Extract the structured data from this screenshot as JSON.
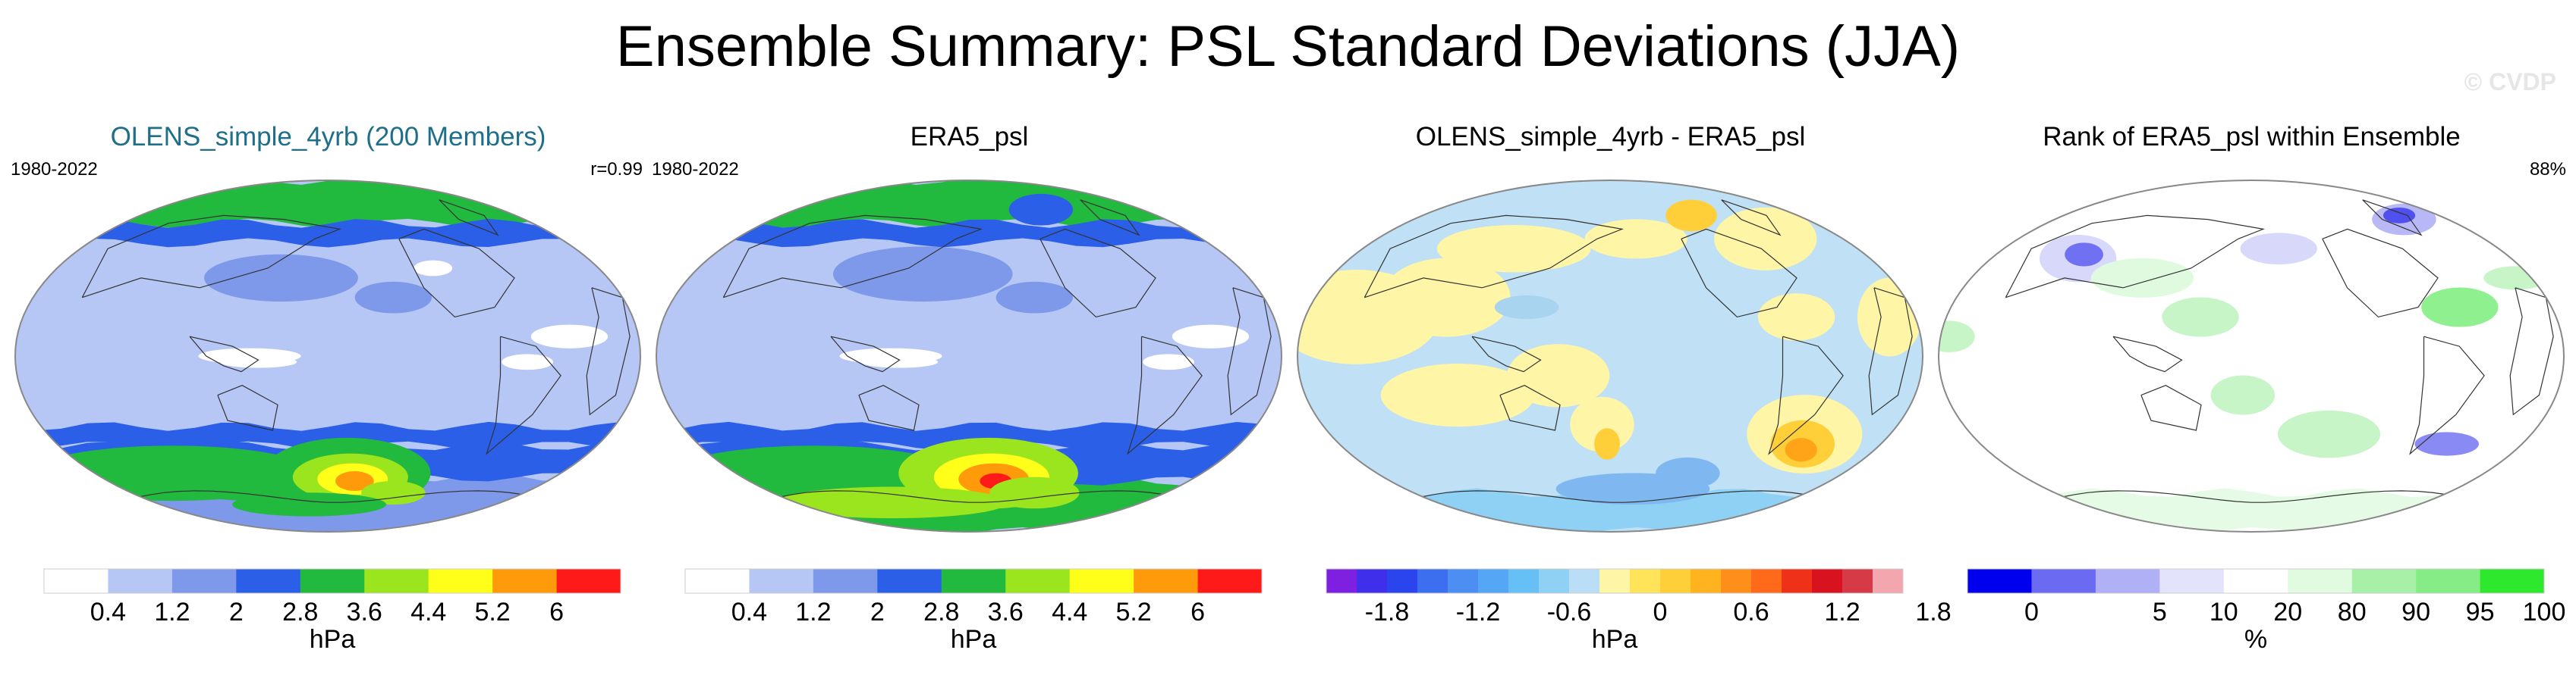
{
  "title": "Ensemble Summary: PSL Standard Deviations (JJA)",
  "watermark": "© CVDP",
  "panels": [
    {
      "title": "OLENS_simple_4yrb (200 Members)",
      "title_color": "#1f6f8b",
      "left_label": "1980-2022",
      "right_label": "r=0.99",
      "map": {
        "ocean": "#b6c7f5",
        "polar_bands": [
          {
            "from_lat": -90,
            "to_lat": -62,
            "color": "#7e98ea"
          },
          {
            "from_lat": -62,
            "to_lat": -46,
            "color": "#2b5fe8"
          },
          {
            "from_lat": -46,
            "to_lat": -36,
            "color": "#2b5fe8"
          },
          {
            "from_lat": 68,
            "to_lat": 90,
            "color": "#22b93f"
          },
          {
            "from_lat": 58,
            "to_lat": 68,
            "color": "#2b5fe8"
          }
        ],
        "blobs": [
          {
            "lon": 60,
            "lat": -60,
            "rx": 0.22,
            "ry": 0.07,
            "color": "#22b93f"
          },
          {
            "lon": 115,
            "lat": -64,
            "rx": 0.11,
            "ry": 0.05,
            "color": "#22b93f"
          },
          {
            "lon": 40,
            "lat": -58,
            "rx": 0.07,
            "ry": 0.035,
            "color": "#22b93f"
          },
          {
            "lon": 195,
            "lat": -60,
            "rx": 0.13,
            "ry": 0.09,
            "color": "#22b93f"
          },
          {
            "lon": 198,
            "lat": -62,
            "rx": 0.09,
            "ry": 0.06,
            "color": "#9be51e"
          },
          {
            "lon": 200,
            "lat": -63,
            "rx": 0.055,
            "ry": 0.04,
            "color": "#ffff1a"
          },
          {
            "lon": 202,
            "lat": -64,
            "rx": 0.03,
            "ry": 0.025,
            "color": "#ff9b0a"
          },
          {
            "lon": 240,
            "lat": -70,
            "rx": 0.05,
            "ry": 0.03,
            "color": "#9be51e"
          },
          {
            "lon": 160,
            "lat": -76,
            "rx": 0.12,
            "ry": 0.03,
            "color": "#22b93f"
          },
          {
            "lon": 150,
            "lat": 40,
            "rx": 0.12,
            "ry": 0.06,
            "color": "#7e98ea"
          },
          {
            "lon": 135,
            "lat": 0,
            "rx": 0.08,
            "ry": 0.02,
            "color": "#ffffff"
          },
          {
            "lon": 140,
            "lat": -3,
            "rx": 0.06,
            "ry": 0.015,
            "color": "#ffffff"
          },
          {
            "lon": 295,
            "lat": -3,
            "rx": 0.04,
            "ry": 0.02,
            "color": "#ffffff"
          },
          {
            "lon": 250,
            "lat": 45,
            "rx": 0.03,
            "ry": 0.02,
            "color": "#ffffff"
          },
          {
            "lon": 320,
            "lat": 10,
            "rx": 0.06,
            "ry": 0.03,
            "color": "#ffffff"
          },
          {
            "lon": 220,
            "lat": 30,
            "rx": 0.06,
            "ry": 0.04,
            "color": "#7e98ea"
          }
        ]
      },
      "colorbar": {
        "type": "hPa",
        "unit": "hPa",
        "colors": [
          "#ffffff",
          "#b6c7f5",
          "#7e98ea",
          "#2b5fe8",
          "#22b93f",
          "#9be51e",
          "#ffff1a",
          "#ff9b0a",
          "#ff1a1a"
        ],
        "tick_labels": [
          "0.4",
          "1.2",
          "2",
          "2.8",
          "3.6",
          "4.4",
          "5.2",
          "6"
        ]
      }
    },
    {
      "title": "ERA5_psl",
      "title_color": "#000000",
      "left_label": "1980-2022",
      "right_label": "",
      "map": {
        "ocean": "#b6c7f5",
        "polar_bands": [
          {
            "from_lat": -90,
            "to_lat": -64,
            "color": "#22b93f"
          },
          {
            "from_lat": -64,
            "to_lat": -46,
            "color": "#2b5fe8"
          },
          {
            "from_lat": -46,
            "to_lat": -36,
            "color": "#2b5fe8"
          },
          {
            "from_lat": 68,
            "to_lat": 90,
            "color": "#22b93f"
          },
          {
            "from_lat": 58,
            "to_lat": 68,
            "color": "#2b5fe8"
          }
        ],
        "blobs": [
          {
            "lon": 60,
            "lat": -60,
            "rx": 0.22,
            "ry": 0.07,
            "color": "#22b93f"
          },
          {
            "lon": 195,
            "lat": -60,
            "rx": 0.14,
            "ry": 0.09,
            "color": "#9be51e"
          },
          {
            "lon": 198,
            "lat": -62,
            "rx": 0.09,
            "ry": 0.06,
            "color": "#ffff1a"
          },
          {
            "lon": 200,
            "lat": -63,
            "rx": 0.055,
            "ry": 0.04,
            "color": "#ff9b0a"
          },
          {
            "lon": 202,
            "lat": -64,
            "rx": 0.025,
            "ry": 0.02,
            "color": "#ff1a1a"
          },
          {
            "lon": 240,
            "lat": -70,
            "rx": 0.07,
            "ry": 0.04,
            "color": "#9be51e"
          },
          {
            "lon": 100,
            "lat": -75,
            "rx": 0.18,
            "ry": 0.04,
            "color": "#9be51e"
          },
          {
            "lon": 150,
            "lat": 42,
            "rx": 0.14,
            "ry": 0.07,
            "color": "#7e98ea"
          },
          {
            "lon": 135,
            "lat": 0,
            "rx": 0.08,
            "ry": 0.02,
            "color": "#ffffff"
          },
          {
            "lon": 140,
            "lat": -3,
            "rx": 0.06,
            "ry": 0.015,
            "color": "#ffffff"
          },
          {
            "lon": 295,
            "lat": -3,
            "rx": 0.04,
            "ry": 0.02,
            "color": "#ffffff"
          },
          {
            "lon": 320,
            "lat": 10,
            "rx": 0.06,
            "ry": 0.03,
            "color": "#ffffff"
          },
          {
            "lon": 220,
            "lat": 30,
            "rx": 0.06,
            "ry": 0.04,
            "color": "#7e98ea"
          },
          {
            "lon": 255,
            "lat": 75,
            "rx": 0.05,
            "ry": 0.04,
            "color": "#2b5fe8"
          }
        ]
      },
      "colorbar": {
        "type": "hPa",
        "unit": "hPa",
        "colors": [
          "#ffffff",
          "#b6c7f5",
          "#7e98ea",
          "#2b5fe8",
          "#22b93f",
          "#9be51e",
          "#ffff1a",
          "#ff9b0a",
          "#ff1a1a"
        ],
        "tick_labels": [
          "0.4",
          "1.2",
          "2",
          "2.8",
          "3.6",
          "4.4",
          "5.2",
          "6"
        ]
      }
    },
    {
      "title": "OLENS_simple_4yrb - ERA5_psl",
      "title_color": "#000000",
      "left_label": "",
      "right_label": "",
      "map": {
        "ocean": "#bfe0f5",
        "polar_bands": [
          {
            "from_lat": -90,
            "to_lat": -70,
            "color": "#8fd0f5"
          }
        ],
        "blobs": [
          {
            "lon": 30,
            "lat": 20,
            "rx": 0.13,
            "ry": 0.12,
            "color": "#fff5a6"
          },
          {
            "lon": 80,
            "lat": 30,
            "rx": 0.1,
            "ry": 0.1,
            "color": "#fff5a6"
          },
          {
            "lon": 110,
            "lat": 55,
            "rx": 0.12,
            "ry": 0.06,
            "color": "#fff5a6"
          },
          {
            "lon": 90,
            "lat": -20,
            "rx": 0.12,
            "ry": 0.08,
            "color": "#fff5a6"
          },
          {
            "lon": 150,
            "lat": -10,
            "rx": 0.08,
            "ry": 0.08,
            "color": "#fff5a6"
          },
          {
            "lon": 175,
            "lat": -35,
            "rx": 0.05,
            "ry": 0.07,
            "color": "#fff5a6"
          },
          {
            "lon": 178,
            "lat": -45,
            "rx": 0.02,
            "ry": 0.04,
            "color": "#ffcf3a"
          },
          {
            "lon": 200,
            "lat": 60,
            "rx": 0.08,
            "ry": 0.05,
            "color": "#fff5a6"
          },
          {
            "lon": 258,
            "lat": 72,
            "rx": 0.04,
            "ry": 0.04,
            "color": "#ffcf3a"
          },
          {
            "lon": 300,
            "lat": 60,
            "rx": 0.08,
            "ry": 0.08,
            "color": "#fff5a6"
          },
          {
            "lon": 290,
            "lat": 20,
            "rx": 0.06,
            "ry": 0.06,
            "color": "#fff5a6"
          },
          {
            "lon": 305,
            "lat": -40,
            "rx": 0.09,
            "ry": 0.1,
            "color": "#fff5a6"
          },
          {
            "lon": 308,
            "lat": -45,
            "rx": 0.05,
            "ry": 0.06,
            "color": "#ffcf3a"
          },
          {
            "lon": 310,
            "lat": -48,
            "rx": 0.025,
            "ry": 0.03,
            "color": "#ffa319"
          },
          {
            "lon": 345,
            "lat": 20,
            "rx": 0.05,
            "ry": 0.1,
            "color": "#fff5a6"
          },
          {
            "lon": 200,
            "lat": -68,
            "rx": 0.12,
            "ry": 0.04,
            "color": "#7fb8f0"
          },
          {
            "lon": 240,
            "lat": -60,
            "rx": 0.05,
            "ry": 0.04,
            "color": "#7fb8f0"
          },
          {
            "lon": 130,
            "lat": 25,
            "rx": 0.05,
            "ry": 0.03,
            "color": "#a8d4f0"
          }
        ]
      },
      "colorbar": {
        "type": "diff",
        "unit": "hPa",
        "colors": [
          "#7f1fe0",
          "#3f2fea",
          "#2a45ee",
          "#3c6ef0",
          "#4c8ef2",
          "#55a6f5",
          "#66bff5",
          "#8fd0f5",
          "#b9def5",
          "#fff5a6",
          "#ffe45a",
          "#ffcf3a",
          "#ffb31f",
          "#ff8f1a",
          "#ff6a1a",
          "#ef3119",
          "#d9121f",
          "#d63a46",
          "#f3a6ad"
        ],
        "tick_labels": [
          "-1.8",
          "-1.2",
          "-0.6",
          "0",
          "0.6",
          "1.2",
          "1.8"
        ]
      }
    },
    {
      "title": "Rank of ERA5_psl within Ensemble",
      "title_color": "#000000",
      "left_label": "",
      "right_label": "88%",
      "map": {
        "ocean": "#ffffff",
        "polar_bands": [
          {
            "from_lat": -90,
            "to_lat": -70,
            "color": "#e5fbe5"
          }
        ],
        "blobs": [
          {
            "lon": 60,
            "lat": 50,
            "rx": 0.06,
            "ry": 0.06,
            "color": "#d8d8fb"
          },
          {
            "lon": 62,
            "lat": 52,
            "rx": 0.03,
            "ry": 0.03,
            "color": "#7070f2"
          },
          {
            "lon": 110,
            "lat": 40,
            "rx": 0.08,
            "ry": 0.05,
            "color": "#e0fae0"
          },
          {
            "lon": 150,
            "lat": 20,
            "rx": 0.06,
            "ry": 0.05,
            "color": "#c7f5c7"
          },
          {
            "lon": 175,
            "lat": -20,
            "rx": 0.05,
            "ry": 0.05,
            "color": "#c7f5c7"
          },
          {
            "lon": 230,
            "lat": -40,
            "rx": 0.08,
            "ry": 0.06,
            "color": "#c7f5c7"
          },
          {
            "lon": 305,
            "lat": 25,
            "rx": 0.06,
            "ry": 0.05,
            "color": "#8ff08f"
          },
          {
            "lon": 320,
            "lat": 70,
            "rx": 0.05,
            "ry": 0.04,
            "color": "#b8b8f7"
          },
          {
            "lon": 322,
            "lat": 72,
            "rx": 0.025,
            "ry": 0.02,
            "color": "#5050ee"
          },
          {
            "lon": 350,
            "lat": 40,
            "rx": 0.05,
            "ry": 0.03,
            "color": "#c7f5c7"
          },
          {
            "lon": 310,
            "lat": -45,
            "rx": 0.05,
            "ry": 0.03,
            "color": "#8a8af5"
          },
          {
            "lon": 200,
            "lat": 55,
            "rx": 0.06,
            "ry": 0.04,
            "color": "#d8d8fb"
          },
          {
            "lon": 5,
            "lat": 10,
            "rx": 0.04,
            "ry": 0.04,
            "color": "#c7f5c7"
          }
        ]
      },
      "colorbar": {
        "type": "rank",
        "unit": "%",
        "colors": [
          "#0000ee",
          "#6a6af2",
          "#b0b0f7",
          "#e3e3fc",
          "#ffffff",
          "#e0fbe0",
          "#a8f0a8",
          "#86ec86",
          "#2ee82e"
        ],
        "tick_labels": [
          "0",
          "5",
          "10",
          "20",
          "80",
          "90",
          "95",
          "100"
        ]
      }
    }
  ]
}
